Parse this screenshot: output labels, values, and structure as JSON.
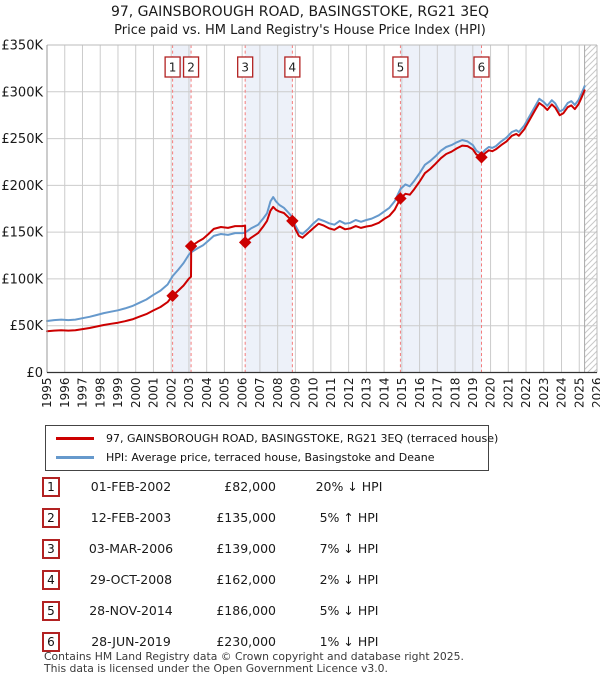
{
  "title": "97, GAINSBOROUGH ROAD, BASINGSTOKE, RG21 3EQ",
  "subtitle": "Price paid vs. HM Land Registry's House Price Index (HPI)",
  "legend": {
    "items": [
      {
        "series": "property",
        "color": "#cc0000",
        "label": "97, GAINSBOROUGH ROAD, BASINGSTOKE, RG21 3EQ (terraced house)"
      },
      {
        "series": "hpi",
        "color": "#6699cc",
        "label": "HPI: Average price, terraced house, Basingstoke and Deane"
      }
    ]
  },
  "sales_table": {
    "rows": [
      {
        "num": "1",
        "date": "01-FEB-2002",
        "price": "£82,000",
        "hpi_diff": "20% ↓ HPI"
      },
      {
        "num": "2",
        "date": "12-FEB-2003",
        "price": "£135,000",
        "hpi_diff": "5% ↑ HPI"
      },
      {
        "num": "3",
        "date": "03-MAR-2006",
        "price": "£139,000",
        "hpi_diff": "7% ↓ HPI"
      },
      {
        "num": "4",
        "date": "29-OCT-2008",
        "price": "£162,000",
        "hpi_diff": "2% ↓ HPI"
      },
      {
        "num": "5",
        "date": "28-NOV-2014",
        "price": "£186,000",
        "hpi_diff": "5% ↓ HPI"
      },
      {
        "num": "6",
        "date": "28-JUN-2019",
        "price": "£230,000",
        "hpi_diff": "1% ↓ HPI"
      }
    ]
  },
  "footer": {
    "line1": "Contains HM Land Registry data © Crown copyright and database right 2025.",
    "line2": "This data is licensed under the Open Government Licence v3.0."
  },
  "chart_data": {
    "type": "line",
    "title": "97, GAINSBOROUGH ROAD, BASINGSTOKE, RG21 3EQ",
    "xlabel": "",
    "ylabel": "",
    "xlim": [
      1995,
      2026
    ],
    "ylim_k": [
      0,
      350
    ],
    "grid": true,
    "x_ticks": [
      1995,
      1996,
      1997,
      1998,
      1999,
      2000,
      2001,
      2002,
      2003,
      2004,
      2005,
      2006,
      2007,
      2008,
      2009,
      2010,
      2011,
      2012,
      2013,
      2014,
      2015,
      2016,
      2017,
      2018,
      2019,
      2020,
      2021,
      2022,
      2023,
      2024,
      2025,
      2026
    ],
    "y_ticks": [
      {
        "value": 0,
        "label": "£0"
      },
      {
        "value": 50,
        "label": "£50K"
      },
      {
        "value": 100,
        "label": "£100K"
      },
      {
        "value": 150,
        "label": "£150K"
      },
      {
        "value": 200,
        "label": "£200K"
      },
      {
        "value": 250,
        "label": "£250K"
      },
      {
        "value": 300,
        "label": "£300K"
      },
      {
        "value": 350,
        "label": "£350K"
      }
    ],
    "colors": {
      "property": "#cc0000",
      "hpi": "#6699cc",
      "band": "#edf1f9",
      "sale_line": "#f47c7c",
      "grid": "#cccccc",
      "hatch": "#c8c8c8",
      "marker_box_border": "#b22222"
    },
    "bands": [
      [
        2002.08,
        2003.12
      ],
      [
        2006.17,
        2008.83
      ],
      [
        2014.92,
        2019.49
      ]
    ],
    "future_region": {
      "start": 2025.3,
      "end": 2026
    },
    "sale_markers": [
      {
        "n": "1",
        "x": 2002.08,
        "y_k": 82
      },
      {
        "n": "2",
        "x": 2003.12,
        "y_k": 135
      },
      {
        "n": "3",
        "x": 2006.17,
        "y_k": 139
      },
      {
        "n": "4",
        "x": 2008.83,
        "y_k": 162
      },
      {
        "n": "5",
        "x": 2014.92,
        "y_k": 186
      },
      {
        "n": "6",
        "x": 2019.49,
        "y_k": 230
      }
    ],
    "series": [
      {
        "name": "hpi",
        "label": "HPI: Average price, terraced house, Basingstoke and Deane",
        "points": [
          [
            1995.0,
            55
          ],
          [
            1995.4,
            56
          ],
          [
            1995.8,
            56.5
          ],
          [
            1996.2,
            56
          ],
          [
            1996.6,
            56.5
          ],
          [
            1997.0,
            58
          ],
          [
            1997.4,
            59.5
          ],
          [
            1997.8,
            61.5
          ],
          [
            1998.2,
            63.5
          ],
          [
            1998.6,
            65
          ],
          [
            1999.0,
            66.5
          ],
          [
            1999.4,
            68.5
          ],
          [
            1999.8,
            71
          ],
          [
            2000.2,
            74.5
          ],
          [
            2000.6,
            78
          ],
          [
            2001.0,
            83
          ],
          [
            2001.4,
            87.5
          ],
          [
            2001.8,
            94
          ],
          [
            2002.08,
            103
          ],
          [
            2002.4,
            110
          ],
          [
            2002.7,
            117
          ],
          [
            2003.0,
            126
          ],
          [
            2003.12,
            128.5
          ],
          [
            2003.5,
            133
          ],
          [
            2003.8,
            136
          ],
          [
            2004.1,
            141
          ],
          [
            2004.4,
            146
          ],
          [
            2004.8,
            148
          ],
          [
            2005.2,
            147
          ],
          [
            2005.6,
            149
          ],
          [
            2006.0,
            149
          ],
          [
            2006.17,
            149.5
          ],
          [
            2006.5,
            154
          ],
          [
            2006.9,
            158
          ],
          [
            2007.2,
            165
          ],
          [
            2007.4,
            170
          ],
          [
            2007.6,
            183
          ],
          [
            2007.75,
            187.5
          ],
          [
            2007.9,
            183
          ],
          [
            2008.1,
            179
          ],
          [
            2008.35,
            176
          ],
          [
            2008.6,
            171
          ],
          [
            2008.83,
            166
          ],
          [
            2009.0,
            157
          ],
          [
            2009.2,
            150
          ],
          [
            2009.4,
            148
          ],
          [
            2009.7,
            153
          ],
          [
            2010.0,
            159
          ],
          [
            2010.3,
            164
          ],
          [
            2010.6,
            162
          ],
          [
            2010.9,
            159.5
          ],
          [
            2011.2,
            158
          ],
          [
            2011.5,
            162
          ],
          [
            2011.8,
            159
          ],
          [
            2012.1,
            160
          ],
          [
            2012.4,
            163
          ],
          [
            2012.7,
            161
          ],
          [
            2013.0,
            163
          ],
          [
            2013.3,
            164.5
          ],
          [
            2013.7,
            168
          ],
          [
            2014.0,
            172
          ],
          [
            2014.3,
            176
          ],
          [
            2014.6,
            183
          ],
          [
            2014.92,
            196
          ],
          [
            2015.2,
            201
          ],
          [
            2015.45,
            199
          ],
          [
            2015.7,
            205
          ],
          [
            2016.0,
            213
          ],
          [
            2016.3,
            222
          ],
          [
            2016.6,
            226
          ],
          [
            2016.9,
            231
          ],
          [
            2017.2,
            237
          ],
          [
            2017.5,
            241
          ],
          [
            2017.8,
            243
          ],
          [
            2018.1,
            246
          ],
          [
            2018.4,
            248.5
          ],
          [
            2018.7,
            247
          ],
          [
            2019.0,
            243
          ],
          [
            2019.2,
            237
          ],
          [
            2019.49,
            233.5
          ],
          [
            2019.7,
            238
          ],
          [
            2019.9,
            241
          ],
          [
            2020.1,
            240
          ],
          [
            2020.3,
            242
          ],
          [
            2020.6,
            247
          ],
          [
            2020.9,
            251
          ],
          [
            2021.2,
            257
          ],
          [
            2021.45,
            259
          ],
          [
            2021.6,
            257
          ],
          [
            2021.9,
            264
          ],
          [
            2022.2,
            274
          ],
          [
            2022.5,
            284
          ],
          [
            2022.75,
            292.5
          ],
          [
            2023.0,
            289
          ],
          [
            2023.2,
            285
          ],
          [
            2023.45,
            291
          ],
          [
            2023.65,
            287.5
          ],
          [
            2023.9,
            279
          ],
          [
            2024.1,
            281
          ],
          [
            2024.35,
            288
          ],
          [
            2024.55,
            290
          ],
          [
            2024.75,
            286
          ],
          [
            2024.95,
            291
          ],
          [
            2025.1,
            297
          ],
          [
            2025.3,
            306
          ]
        ]
      },
      {
        "name": "property",
        "label": "97, GAINSBOROUGH ROAD, BASINGSTOKE, RG21 3EQ (terraced house)",
        "points": [
          [
            1995.0,
            44
          ],
          [
            1995.4,
            44.8
          ],
          [
            1995.8,
            45.2
          ],
          [
            1996.2,
            44.8
          ],
          [
            1996.6,
            45.2
          ],
          [
            1997.0,
            46.4
          ],
          [
            1997.4,
            47.6
          ],
          [
            1997.8,
            49.2
          ],
          [
            1998.2,
            50.8
          ],
          [
            1998.6,
            52
          ],
          [
            1999.0,
            53.2
          ],
          [
            1999.4,
            54.8
          ],
          [
            1999.8,
            56.8
          ],
          [
            2000.2,
            59.6
          ],
          [
            2000.6,
            62.4
          ],
          [
            2001.0,
            66.4
          ],
          [
            2001.4,
            70
          ],
          [
            2001.8,
            75.2
          ],
          [
            2002.08,
            82
          ],
          [
            2002.4,
            87.5
          ],
          [
            2002.7,
            93
          ],
          [
            2003.0,
            100.3
          ],
          [
            2003.115,
            102.3
          ],
          [
            2003.125,
            135
          ],
          [
            2003.5,
            139.7
          ],
          [
            2003.8,
            143
          ],
          [
            2004.1,
            148
          ],
          [
            2004.4,
            153.5
          ],
          [
            2004.8,
            155.5
          ],
          [
            2005.2,
            154.5
          ],
          [
            2005.6,
            156.5
          ],
          [
            2006.0,
            156.5
          ],
          [
            2006.165,
            157
          ],
          [
            2006.175,
            139
          ],
          [
            2006.5,
            144
          ],
          [
            2006.9,
            149
          ],
          [
            2007.2,
            156.5
          ],
          [
            2007.4,
            162
          ],
          [
            2007.6,
            173
          ],
          [
            2007.75,
            177
          ],
          [
            2007.9,
            174
          ],
          [
            2008.1,
            172
          ],
          [
            2008.35,
            170.5
          ],
          [
            2008.6,
            166
          ],
          [
            2008.83,
            162
          ],
          [
            2009.0,
            153
          ],
          [
            2009.2,
            146
          ],
          [
            2009.4,
            144
          ],
          [
            2009.7,
            149
          ],
          [
            2010.0,
            154
          ],
          [
            2010.3,
            159
          ],
          [
            2010.6,
            157
          ],
          [
            2010.9,
            154
          ],
          [
            2011.2,
            152.5
          ],
          [
            2011.5,
            156
          ],
          [
            2011.8,
            153
          ],
          [
            2012.1,
            154
          ],
          [
            2012.4,
            156.5
          ],
          [
            2012.7,
            154.5
          ],
          [
            2013.0,
            156
          ],
          [
            2013.3,
            157
          ],
          [
            2013.7,
            160
          ],
          [
            2014.0,
            164
          ],
          [
            2014.3,
            167.5
          ],
          [
            2014.6,
            174
          ],
          [
            2014.92,
            186
          ],
          [
            2015.2,
            191
          ],
          [
            2015.45,
            190
          ],
          [
            2015.7,
            196
          ],
          [
            2016.0,
            204
          ],
          [
            2016.3,
            213
          ],
          [
            2016.6,
            217.5
          ],
          [
            2016.9,
            223
          ],
          [
            2017.2,
            229
          ],
          [
            2017.5,
            233.5
          ],
          [
            2017.8,
            236
          ],
          [
            2018.1,
            239.5
          ],
          [
            2018.4,
            242.5
          ],
          [
            2018.7,
            242
          ],
          [
            2019.0,
            238.5
          ],
          [
            2019.2,
            233
          ],
          [
            2019.49,
            230
          ],
          [
            2019.7,
            234.5
          ],
          [
            2019.9,
            237.5
          ],
          [
            2020.1,
            236.5
          ],
          [
            2020.3,
            238.5
          ],
          [
            2020.6,
            243
          ],
          [
            2020.9,
            247
          ],
          [
            2021.2,
            253
          ],
          [
            2021.45,
            255
          ],
          [
            2021.6,
            253
          ],
          [
            2021.9,
            260
          ],
          [
            2022.2,
            270
          ],
          [
            2022.5,
            280
          ],
          [
            2022.75,
            288
          ],
          [
            2023.0,
            284.5
          ],
          [
            2023.2,
            280.5
          ],
          [
            2023.45,
            286.5
          ],
          [
            2023.65,
            283
          ],
          [
            2023.9,
            275
          ],
          [
            2024.1,
            277
          ],
          [
            2024.35,
            283.5
          ],
          [
            2024.55,
            285.5
          ],
          [
            2024.75,
            281.5
          ],
          [
            2024.95,
            286.5
          ],
          [
            2025.1,
            292.5
          ],
          [
            2025.3,
            301.5
          ]
        ]
      }
    ]
  }
}
